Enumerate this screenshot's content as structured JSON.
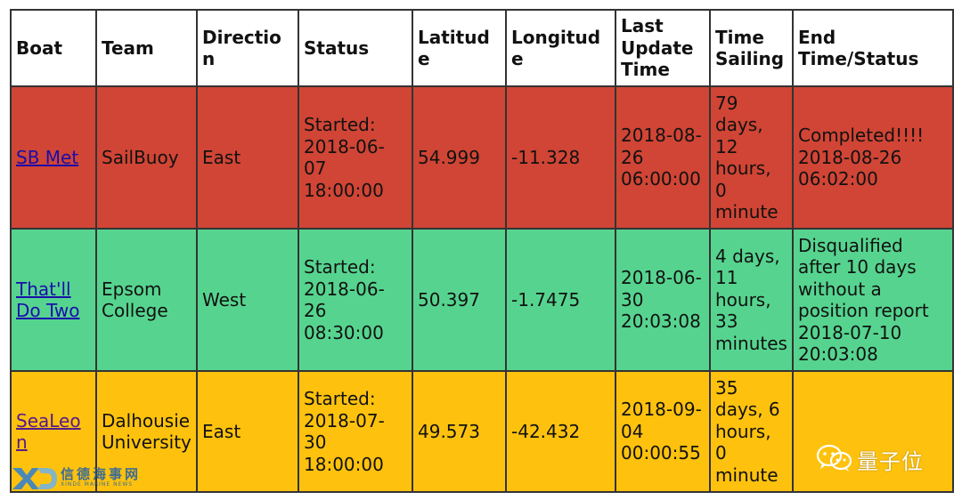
{
  "table": {
    "headers": {
      "boat": "Boat",
      "team": "Team",
      "direction": "Direction",
      "status": "Status",
      "latitude": "Latitude",
      "longitude": "Longitude",
      "last_update": "Last Update Time",
      "time_sailing": "Time Sailing",
      "end": "End Time/Status"
    },
    "rows": [
      {
        "boat": "SB Met",
        "team": "SailBuoy",
        "direction": "East",
        "status": "Started: 2018-06-07 18:00:00",
        "latitude": "54.999",
        "longitude": "-11.328",
        "last_update": "2018-08-26 06:00:00",
        "time_sailing": "79 days, 12 hours, 0 minute",
        "end": "Completed!!!! 2018-08-26 06:02:00",
        "row_color": "#d04535"
      },
      {
        "boat": "That'll Do Two",
        "team": "Epsom College",
        "direction": "West",
        "status": "Started: 2018-06-26 08:30:00",
        "latitude": "50.397",
        "longitude": "-1.7475",
        "last_update": "2018-06-30 20:03:08",
        "time_sailing": "4 days, 11 hours, 33 minutes",
        "end": "Disqualified after 10 days without a position report 2018-07-10 20:03:08",
        "row_color": "#56d48f"
      },
      {
        "boat": "SeaLeon",
        "team": "Dalhousie University",
        "direction": "East",
        "status": "Started: 2018-07-30 18:00:00",
        "latitude": "49.573",
        "longitude": "-42.432",
        "last_update": "2018-09-04 00:00:55",
        "time_sailing": "35 days, 6 hours, 0 minute",
        "end": "",
        "row_color": "#fec20e"
      }
    ]
  },
  "watermarks": {
    "left_logo_text": "信德海事网",
    "left_logo_sub": "XINDE MARINE NEWS",
    "right_text": "量子位"
  }
}
